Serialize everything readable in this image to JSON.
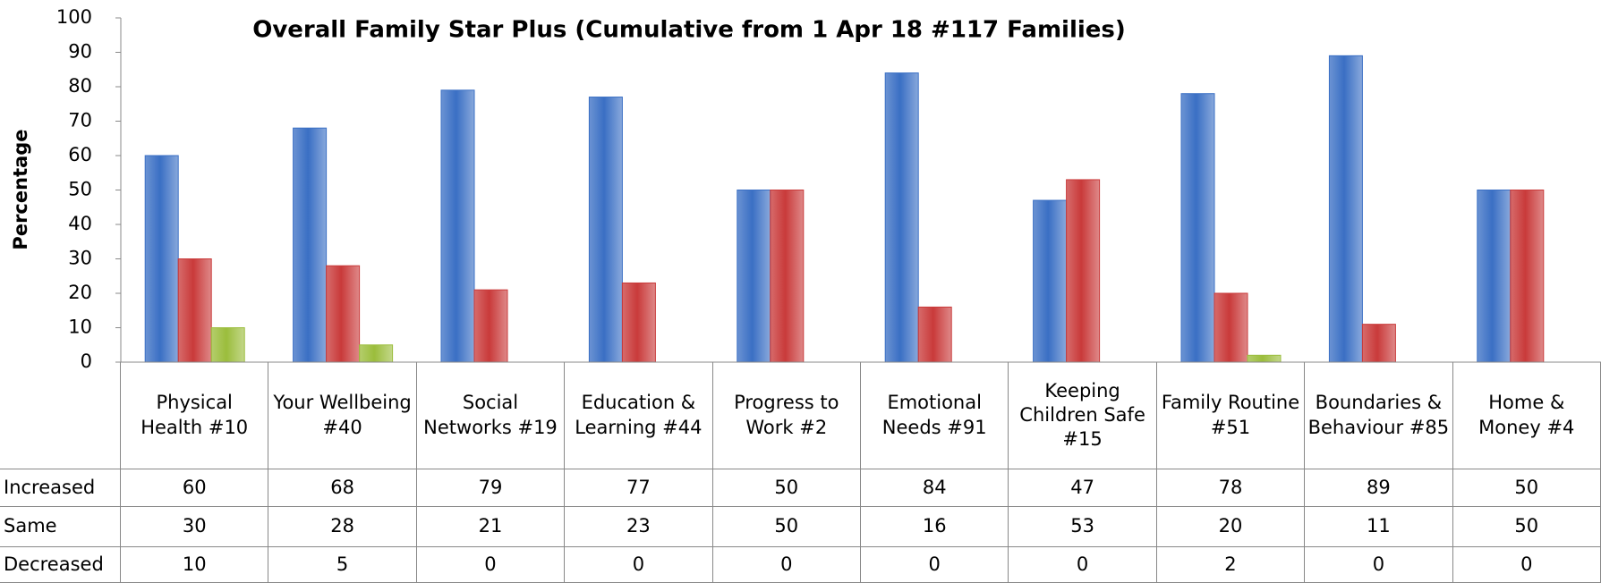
{
  "chart_data": {
    "type": "bar",
    "title": "Overall Family Star Plus (Cumulative from 1 Apr 18 #117 Families)",
    "y_label": "Percentage",
    "categories": [
      "Physical Health #10",
      "Your Wellbeing #40",
      "Social Networks #19",
      "Education & Learning #44",
      "Progress to Work #2",
      "Emotional Needs #91",
      "Keeping Children Safe #15",
      "Family Routine #51",
      "Boundaries & Behaviour #85",
      "Home & Money #4"
    ],
    "series": [
      {
        "name": "Increased",
        "color": "#3a6fc4",
        "values": [
          60,
          68,
          79,
          77,
          50,
          84,
          47,
          78,
          89,
          50
        ]
      },
      {
        "name": "Same",
        "color": "#c93a3a",
        "values": [
          30,
          28,
          21,
          23,
          50,
          16,
          53,
          20,
          11,
          50
        ]
      },
      {
        "name": "Decreased",
        "color": "#9bbd3c",
        "values": [
          10,
          5,
          0,
          0,
          0,
          0,
          0,
          2,
          0,
          0
        ]
      }
    ],
    "ylim": [
      0,
      100
    ],
    "yticks": [
      0,
      10,
      20,
      30,
      40,
      50,
      60,
      70,
      80,
      90,
      100
    ],
    "grid": false
  }
}
